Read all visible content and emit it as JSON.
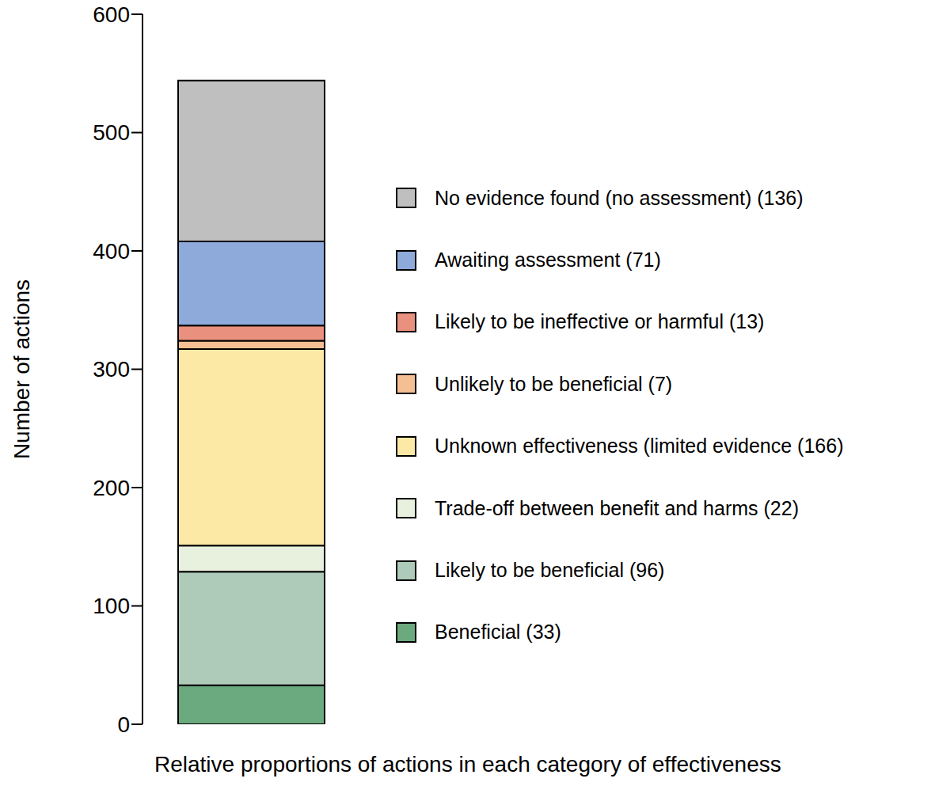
{
  "chart_data": {
    "type": "bar",
    "stacked": true,
    "categories": [
      null
    ],
    "series": [
      {
        "name": "Beneficial (33)",
        "color": "#6aaa7e",
        "values": [
          33
        ]
      },
      {
        "name": "Likely to be beneficial (96)",
        "color": "#adcbb8",
        "values": [
          96
        ]
      },
      {
        "name": "Trade-off between benefit and harms (22)",
        "color": "#e8f0de",
        "values": [
          22
        ]
      },
      {
        "name": "Unknown effectiveness (limited evidence (166)",
        "color": "#fce9a5",
        "values": [
          166
        ]
      },
      {
        "name": "Unlikely to be beneficial (7)",
        "color": "#f5bf94",
        "values": [
          7
        ]
      },
      {
        "name": "Likely to be ineffective or harmful (13)",
        "color": "#e9907e",
        "values": [
          13
        ]
      },
      {
        "name": "Awaiting assessment (71)",
        "color": "#8eaadb",
        "values": [
          71
        ]
      },
      {
        "name": "No evidence found (no assessment) (136)",
        "color": "#bfbfbf",
        "values": [
          136
        ]
      }
    ],
    "ylim": [
      0,
      600
    ],
    "yticks": [
      0,
      100,
      200,
      300,
      400,
      500,
      600
    ],
    "ylabel": "Number of actions",
    "xlabel": "Relative proportions of actions in each category of effectiveness",
    "legend": "right",
    "tick_labels": "y"
  }
}
